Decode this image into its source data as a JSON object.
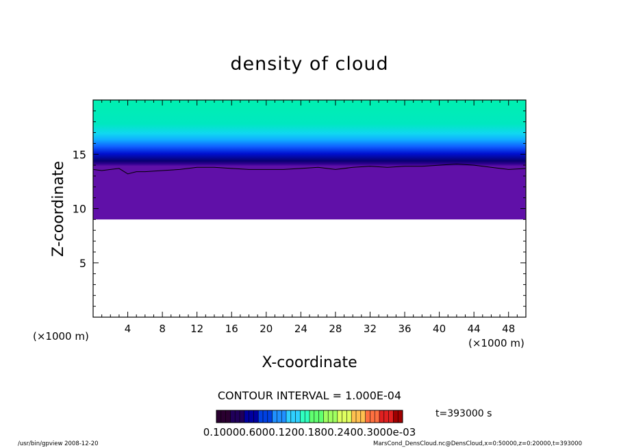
{
  "chart_data": {
    "type": "heatmap",
    "title": "density of cloud",
    "xlabel": "X-coordinate",
    "ylabel": "Z-coordinate",
    "x_unit_left": "(×1000 m)",
    "x_unit_right": "(×1000 m)",
    "xlim": [
      0,
      50
    ],
    "ylim": [
      0,
      20
    ],
    "xticks": [
      "4",
      "8",
      "12",
      "16",
      "20",
      "24",
      "28",
      "32",
      "36",
      "40",
      "44",
      "48"
    ],
    "xtick_values": [
      4,
      8,
      12,
      16,
      20,
      24,
      28,
      32,
      36,
      40,
      44,
      48
    ],
    "yticks": [
      "5",
      "10",
      "15"
    ],
    "ytick_values": [
      5,
      10,
      15
    ],
    "contour_interval_text": "CONTOUR INTERVAL = 1.000E-04",
    "time_text": "t=393000 s",
    "colorbar_label_text": "0.10000.6000.1200.1800.2400.3000e-03",
    "colorbar_colors": [
      "#2a0030",
      "#20005a",
      "#0000a0",
      "#0040e0",
      "#2090ff",
      "#30d0ff",
      "#30ffc0",
      "#60ff70",
      "#a0ff60",
      "#e0ff60",
      "#ffc050",
      "#ff7040",
      "#e02020",
      "#a00000"
    ],
    "cloud_base_z": 9.0,
    "contour_line": {
      "x": [
        0,
        1,
        2,
        3,
        4,
        5,
        6,
        8,
        10,
        12,
        14,
        16,
        18,
        20,
        22,
        24,
        26,
        28,
        30,
        32,
        34,
        36,
        38,
        40,
        42,
        44,
        46,
        48,
        50
      ],
      "z": [
        13.6,
        13.5,
        13.6,
        13.7,
        13.2,
        13.4,
        13.4,
        13.5,
        13.6,
        13.8,
        13.8,
        13.7,
        13.6,
        13.6,
        13.6,
        13.7,
        13.8,
        13.6,
        13.8,
        13.9,
        13.8,
        13.9,
        13.9,
        14.0,
        14.1,
        14.0,
        13.8,
        13.6,
        13.7
      ]
    }
  },
  "footer": {
    "left_text": "/usr/bin/gpview   2008-12-20",
    "right_text": "MarsCond_DensCloud.nc@DensCloud,x=0:50000,z=0:20000,t=393000"
  }
}
